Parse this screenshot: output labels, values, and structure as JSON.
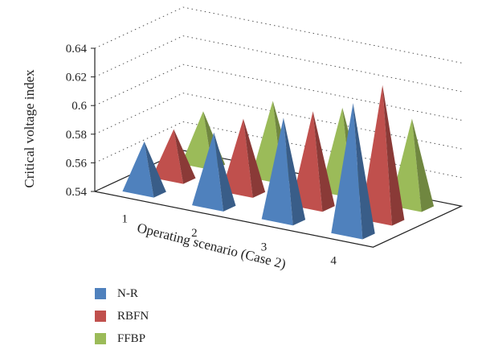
{
  "chart_data": {
    "type": "bar",
    "style": "3d-pyramid",
    "xlabel": "Operating scenario (Case 2)",
    "ylabel": "Critical voltage index",
    "categories": [
      "1",
      "2",
      "3",
      "4"
    ],
    "y_ticks": [
      "0.54",
      "0.56",
      "0.58",
      "0.6",
      "0.62",
      "0.64"
    ],
    "ylim": [
      0.54,
      0.64
    ],
    "grid": true,
    "legend_position": "bottom-left",
    "series": [
      {
        "name": "N-R",
        "color": "#4f81bd",
        "values": [
          0.575,
          0.591,
          0.611,
          0.631
        ]
      },
      {
        "name": "RBFN",
        "color": "#c0504d",
        "values": [
          0.574,
          0.591,
          0.606,
          0.634
        ]
      },
      {
        "name": "FFBP",
        "color": "#9bbb59",
        "values": [
          0.577,
          0.594,
          0.599,
          0.601
        ]
      }
    ]
  }
}
